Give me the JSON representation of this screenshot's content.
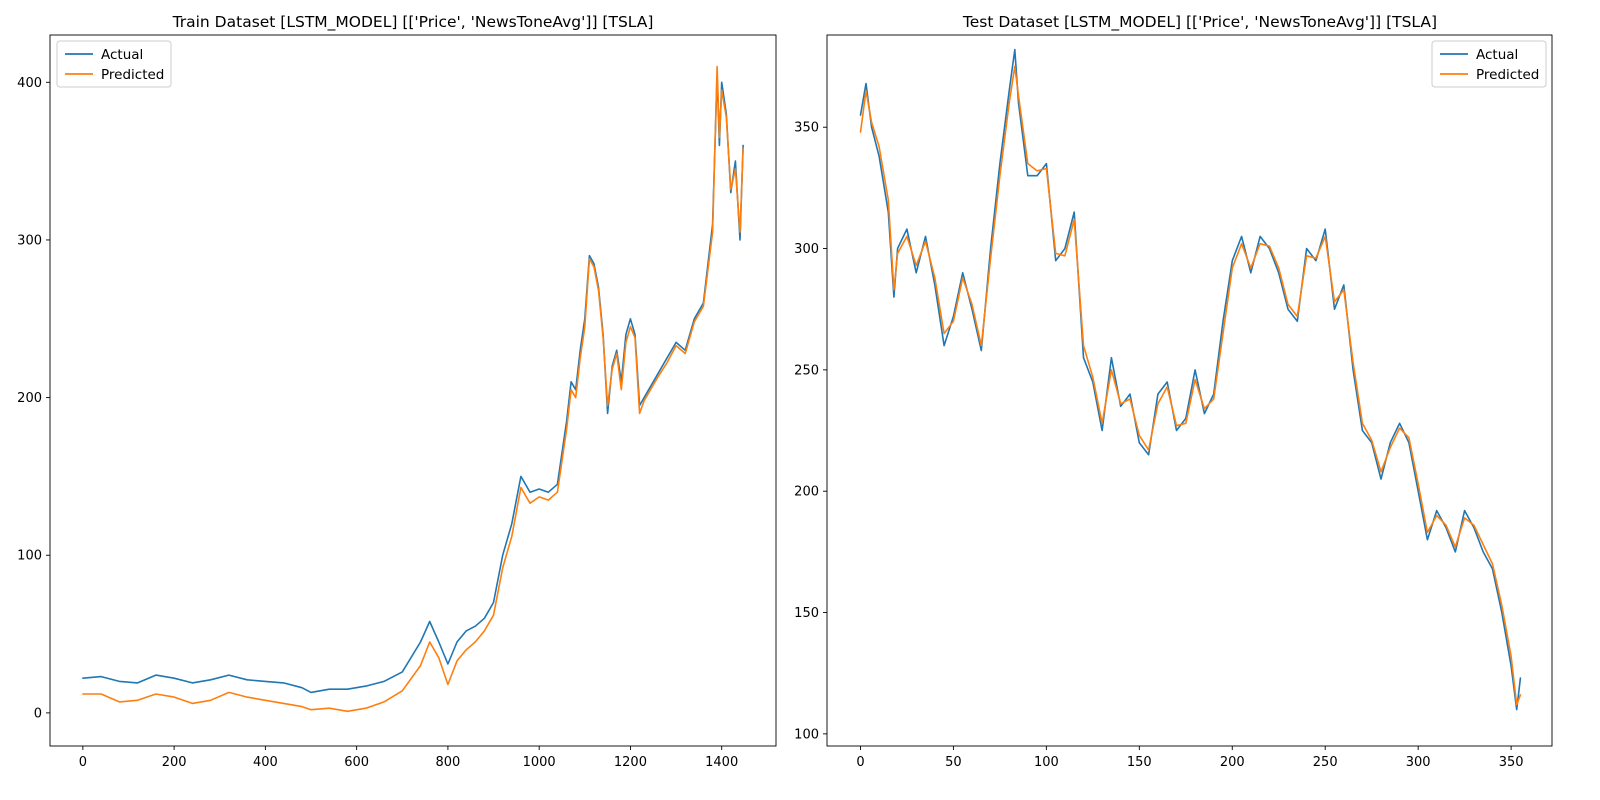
{
  "chart_data": [
    {
      "type": "line",
      "title": "Train Dataset [LSTM_MODEL] [['Price', 'NewsToneAvg']] [TSLA]",
      "xlabel": "",
      "ylabel": "",
      "xlim": [
        -72,
        1519
      ],
      "ylim": [
        -21,
        430
      ],
      "xticks": [
        0,
        200,
        400,
        600,
        800,
        1000,
        1200,
        1400
      ],
      "yticks": [
        0,
        100,
        200,
        300,
        400
      ],
      "legend": "top-left",
      "grid": false,
      "series": [
        {
          "name": "Actual",
          "color": "#1f77b4",
          "x": [
            0,
            40,
            80,
            120,
            160,
            200,
            240,
            280,
            320,
            360,
            400,
            440,
            480,
            500,
            540,
            580,
            620,
            660,
            700,
            740,
            760,
            780,
            800,
            820,
            840,
            860,
            880,
            900,
            920,
            940,
            960,
            980,
            1000,
            1020,
            1040,
            1060,
            1070,
            1080,
            1090,
            1100,
            1110,
            1120,
            1130,
            1140,
            1150,
            1160,
            1170,
            1180,
            1190,
            1200,
            1210,
            1220,
            1230,
            1240,
            1260,
            1280,
            1300,
            1320,
            1340,
            1360,
            1380,
            1390,
            1395,
            1400,
            1410,
            1420,
            1430,
            1440,
            1447
          ],
          "y": [
            22,
            23,
            20,
            19,
            24,
            22,
            19,
            21,
            24,
            21,
            20,
            19,
            16,
            13,
            15,
            15,
            17,
            20,
            26,
            45,
            58,
            45,
            31,
            45,
            52,
            55,
            60,
            70,
            100,
            120,
            150,
            140,
            142,
            140,
            145,
            185,
            210,
            205,
            230,
            250,
            290,
            285,
            270,
            240,
            190,
            220,
            230,
            210,
            240,
            250,
            240,
            195,
            200,
            205,
            215,
            225,
            235,
            230,
            250,
            260,
            310,
            405,
            360,
            400,
            380,
            330,
            350,
            300,
            360
          ]
        },
        {
          "name": "Predicted",
          "color": "#ff7f0e",
          "x": [
            0,
            40,
            80,
            120,
            160,
            200,
            240,
            280,
            320,
            360,
            400,
            440,
            480,
            500,
            540,
            580,
            620,
            660,
            700,
            740,
            760,
            780,
            800,
            820,
            840,
            860,
            880,
            900,
            920,
            940,
            960,
            980,
            1000,
            1020,
            1040,
            1060,
            1070,
            1080,
            1090,
            1100,
            1110,
            1120,
            1130,
            1140,
            1150,
            1160,
            1170,
            1180,
            1190,
            1200,
            1210,
            1220,
            1230,
            1240,
            1260,
            1280,
            1300,
            1320,
            1340,
            1360,
            1380,
            1390,
            1395,
            1400,
            1410,
            1420,
            1430,
            1440,
            1447
          ],
          "y": [
            12,
            12,
            7,
            8,
            12,
            10,
            6,
            8,
            13,
            10,
            8,
            6,
            4,
            2,
            3,
            1,
            3,
            7,
            14,
            30,
            45,
            35,
            18,
            33,
            40,
            45,
            52,
            62,
            92,
            112,
            143,
            133,
            137,
            135,
            140,
            180,
            205,
            200,
            225,
            245,
            288,
            283,
            268,
            238,
            195,
            218,
            228,
            205,
            235,
            245,
            238,
            190,
            198,
            203,
            213,
            222,
            233,
            228,
            248,
            258,
            305,
            410,
            365,
            395,
            378,
            332,
            345,
            305,
            358
          ]
        }
      ]
    },
    {
      "type": "line",
      "title": "Test Dataset [LSTM_MODEL] [['Price', 'NewsToneAvg']] [TSLA]",
      "xlabel": "",
      "ylabel": "",
      "xlim": [
        -18,
        372
      ],
      "ylim": [
        95,
        388
      ],
      "xticks": [
        0,
        50,
        100,
        150,
        200,
        250,
        300,
        350
      ],
      "yticks": [
        100,
        150,
        200,
        250,
        300,
        350
      ],
      "legend": "top-right",
      "grid": false,
      "series": [
        {
          "name": "Actual",
          "color": "#1f77b4",
          "x": [
            0,
            3,
            6,
            10,
            15,
            18,
            20,
            25,
            30,
            35,
            40,
            45,
            50,
            55,
            60,
            65,
            70,
            75,
            80,
            83,
            85,
            90,
            95,
            100,
            105,
            110,
            115,
            120,
            125,
            130,
            135,
            140,
            145,
            150,
            155,
            160,
            165,
            170,
            175,
            180,
            185,
            190,
            195,
            200,
            205,
            210,
            215,
            220,
            225,
            230,
            235,
            240,
            245,
            250,
            255,
            260,
            265,
            270,
            275,
            280,
            285,
            290,
            295,
            300,
            305,
            310,
            315,
            320,
            325,
            330,
            335,
            340,
            345,
            350,
            353,
            355
          ],
          "y": [
            355,
            368,
            350,
            338,
            315,
            280,
            300,
            308,
            290,
            305,
            285,
            260,
            272,
            290,
            275,
            258,
            300,
            335,
            365,
            382,
            360,
            330,
            330,
            335,
            295,
            300,
            315,
            255,
            245,
            225,
            255,
            235,
            240,
            220,
            215,
            240,
            245,
            225,
            230,
            250,
            232,
            240,
            270,
            295,
            305,
            290,
            305,
            300,
            290,
            275,
            270,
            300,
            295,
            308,
            275,
            285,
            250,
            225,
            220,
            205,
            220,
            228,
            220,
            200,
            180,
            192,
            185,
            175,
            192,
            185,
            175,
            168,
            150,
            128,
            110,
            123
          ]
        },
        {
          "name": "Predicted",
          "color": "#ff7f0e",
          "x": [
            0,
            3,
            6,
            10,
            15,
            18,
            20,
            25,
            30,
            35,
            40,
            45,
            50,
            55,
            60,
            65,
            70,
            75,
            80,
            83,
            85,
            90,
            95,
            100,
            105,
            110,
            115,
            120,
            125,
            130,
            135,
            140,
            145,
            150,
            155,
            160,
            165,
            170,
            175,
            180,
            185,
            190,
            195,
            200,
            205,
            210,
            215,
            220,
            225,
            230,
            235,
            240,
            245,
            250,
            255,
            260,
            265,
            270,
            275,
            280,
            285,
            290,
            295,
            300,
            305,
            310,
            315,
            320,
            325,
            330,
            335,
            340,
            345,
            350,
            353,
            355
          ],
          "y": [
            348,
            365,
            352,
            342,
            320,
            283,
            298,
            305,
            293,
            303,
            288,
            265,
            270,
            288,
            277,
            260,
            296,
            330,
            360,
            375,
            363,
            335,
            332,
            333,
            298,
            297,
            312,
            260,
            247,
            228,
            250,
            236,
            238,
            223,
            217,
            236,
            243,
            227,
            228,
            246,
            234,
            238,
            265,
            292,
            302,
            292,
            302,
            301,
            292,
            277,
            272,
            297,
            296,
            305,
            278,
            283,
            253,
            228,
            221,
            208,
            218,
            226,
            222,
            203,
            183,
            190,
            186,
            177,
            189,
            186,
            178,
            170,
            153,
            132,
            112,
            116
          ]
        }
      ]
    }
  ]
}
